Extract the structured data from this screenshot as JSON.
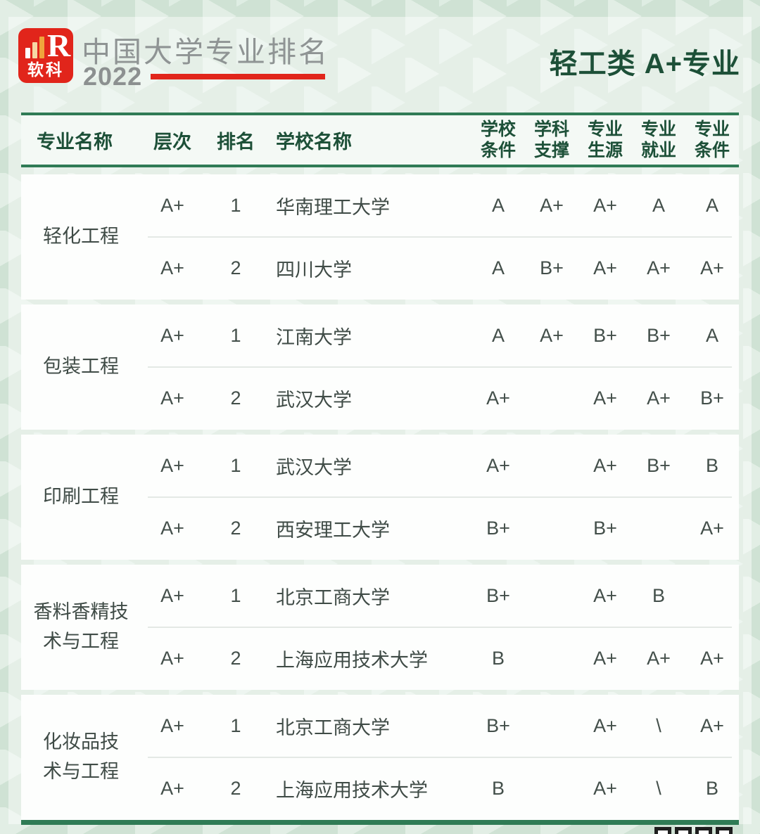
{
  "header": {
    "logo_brand": "软科",
    "logo_letter": "R",
    "title": "中国大学专业排名",
    "year": "2022",
    "category": "轻工类 A+专业"
  },
  "table": {
    "columns_left": [
      "专业名称",
      "层次",
      "排名",
      "学校名称"
    ],
    "columns_right": [
      {
        "l1": "学校",
        "l2": "条件"
      },
      {
        "l1": "学科",
        "l2": "支撑"
      },
      {
        "l1": "专业",
        "l2": "生源"
      },
      {
        "l1": "专业",
        "l2": "就业"
      },
      {
        "l1": "专业",
        "l2": "条件"
      }
    ],
    "groups": [
      {
        "major": "轻化工程",
        "rows": [
          {
            "level": "A+",
            "rank": "1",
            "school": "华南理工大学",
            "grades": [
              "A",
              "A+",
              "A+",
              "A",
              "A"
            ]
          },
          {
            "level": "A+",
            "rank": "2",
            "school": "四川大学",
            "grades": [
              "A",
              "B+",
              "A+",
              "A+",
              "A+"
            ]
          }
        ]
      },
      {
        "major": "包装工程",
        "rows": [
          {
            "level": "A+",
            "rank": "1",
            "school": "江南大学",
            "grades": [
              "A",
              "A+",
              "B+",
              "B+",
              "A"
            ]
          },
          {
            "level": "A+",
            "rank": "2",
            "school": "武汉大学",
            "grades": [
              "A+",
              "",
              "A+",
              "A+",
              "B+"
            ]
          }
        ]
      },
      {
        "major": "印刷工程",
        "rows": [
          {
            "level": "A+",
            "rank": "1",
            "school": "武汉大学",
            "grades": [
              "A+",
              "",
              "A+",
              "B+",
              "B"
            ]
          },
          {
            "level": "A+",
            "rank": "2",
            "school": "西安理工大学",
            "grades": [
              "B+",
              "",
              "B+",
              "",
              "A+"
            ]
          }
        ]
      },
      {
        "major": "香料香精技术与工程",
        "rows": [
          {
            "level": "A+",
            "rank": "1",
            "school": "北京工商大学",
            "grades": [
              "B+",
              "",
              "A+",
              "B",
              ""
            ]
          },
          {
            "level": "A+",
            "rank": "2",
            "school": "上海应用技术大学",
            "grades": [
              "B",
              "",
              "A+",
              "A+",
              "A+"
            ]
          }
        ]
      },
      {
        "major": "化妆品技术与工程",
        "rows": [
          {
            "level": "A+",
            "rank": "1",
            "school": "北京工商大学",
            "grades": [
              "B+",
              "",
              "A+",
              "\\",
              "A+"
            ]
          },
          {
            "level": "A+",
            "rank": "2",
            "school": "上海应用技术大学",
            "grades": [
              "B",
              "",
              "A+",
              "\\",
              "B"
            ]
          }
        ]
      }
    ]
  },
  "colors": {
    "accent_green": "#1d5038",
    "line_green": "#2f7b55",
    "brand_red": "#e1251b"
  }
}
